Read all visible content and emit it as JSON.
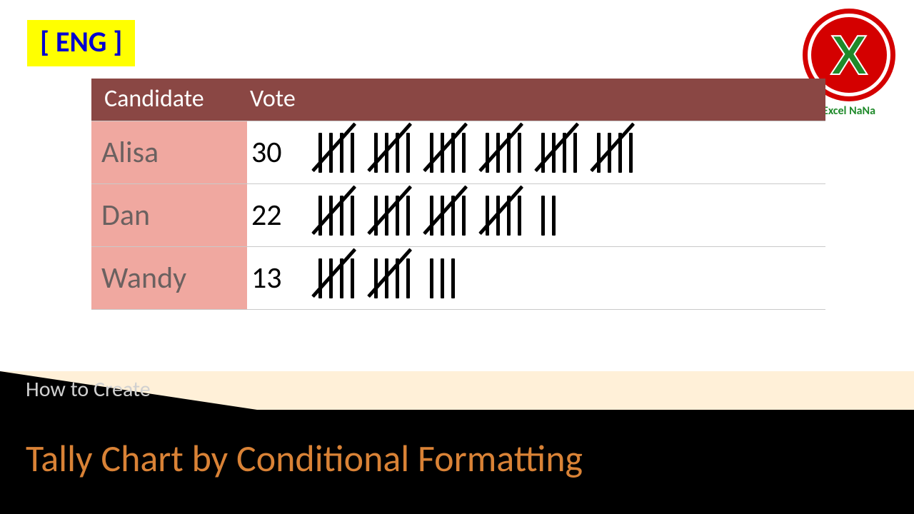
{
  "badge": {
    "text": "[ ENG ]",
    "bg": "#ffff00",
    "color": "#0000d0",
    "fontsize": 40
  },
  "logo": {
    "outer_ring_color": "#d40000",
    "outer_ring_width": 7,
    "inner_bg": "#d40000",
    "x_color": "#1f8a2a",
    "x_outline": "#ffffff",
    "x_fontsize": 78,
    "brand_text": "Excel NaNa",
    "brand_color": "#1f8a2a",
    "brand_fontsize": 16
  },
  "table": {
    "type": "tally-table",
    "header_bg": "#8a4744",
    "header_color": "#ffffff",
    "header_fontsize": 34,
    "headers": {
      "candidate": "Candidate",
      "vote": "Vote"
    },
    "candidate_cell_bg": "#f0a8a0",
    "candidate_cell_color": "#6b6160",
    "vote_cell_bg": "#ffffff",
    "vote_cell_color": "#000000",
    "row_border_color": "#c9c9c9",
    "cell_fontsize": 42,
    "tally": {
      "stroke_color": "#000000",
      "stroke_width": 5,
      "stroke_height": 56,
      "group_of": 5,
      "group_gap": 28,
      "inner_gap": 10
    },
    "rows": [
      {
        "name": "Alisa",
        "vote": 30
      },
      {
        "name": "Dan",
        "vote": 22
      },
      {
        "name": "Wandy",
        "vote": 13
      }
    ]
  },
  "footer": {
    "light_bg": "#fff0d8",
    "dark_bg": "#000000",
    "triangle_width": 360,
    "triangle_height": 54,
    "small_text": "How to Create",
    "small_color": "#d0d0d0",
    "small_fontsize": 30,
    "big_text": "Tally Chart by Conditional Formatting",
    "big_color": "#d98236",
    "big_fontsize": 52
  }
}
